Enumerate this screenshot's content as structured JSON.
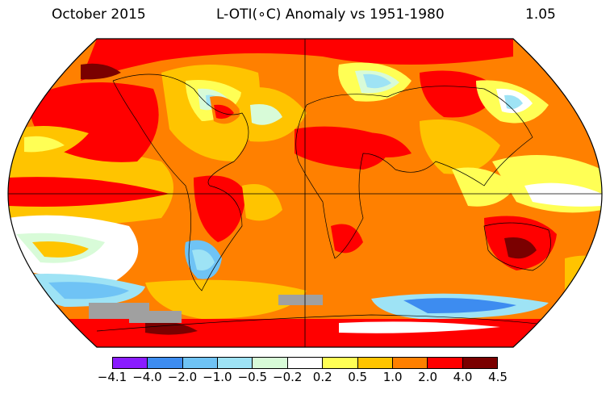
{
  "header": {
    "date": "October 2015",
    "title": "L-OTI(∘C) Anomaly vs 1951-1980",
    "global_mean": "1.05"
  },
  "legend": {
    "colors": [
      "#8a1cff",
      "#3d8cf0",
      "#6fc3f5",
      "#9ee3f5",
      "#d8fbd8",
      "#ffffff",
      "#ffff55",
      "#ffc400",
      "#ff8000",
      "#ff0000",
      "#7a0000"
    ],
    "labels": [
      "−4.1",
      "−4.0",
      "−2.0",
      "−1.0",
      "−0.5",
      "−0.2",
      "0.2",
      "0.5",
      "1.0",
      "2.0",
      "4.0",
      "4.5"
    ]
  },
  "map": {
    "projection": "robinson",
    "missing_data_color": "#a0a0a0"
  }
}
